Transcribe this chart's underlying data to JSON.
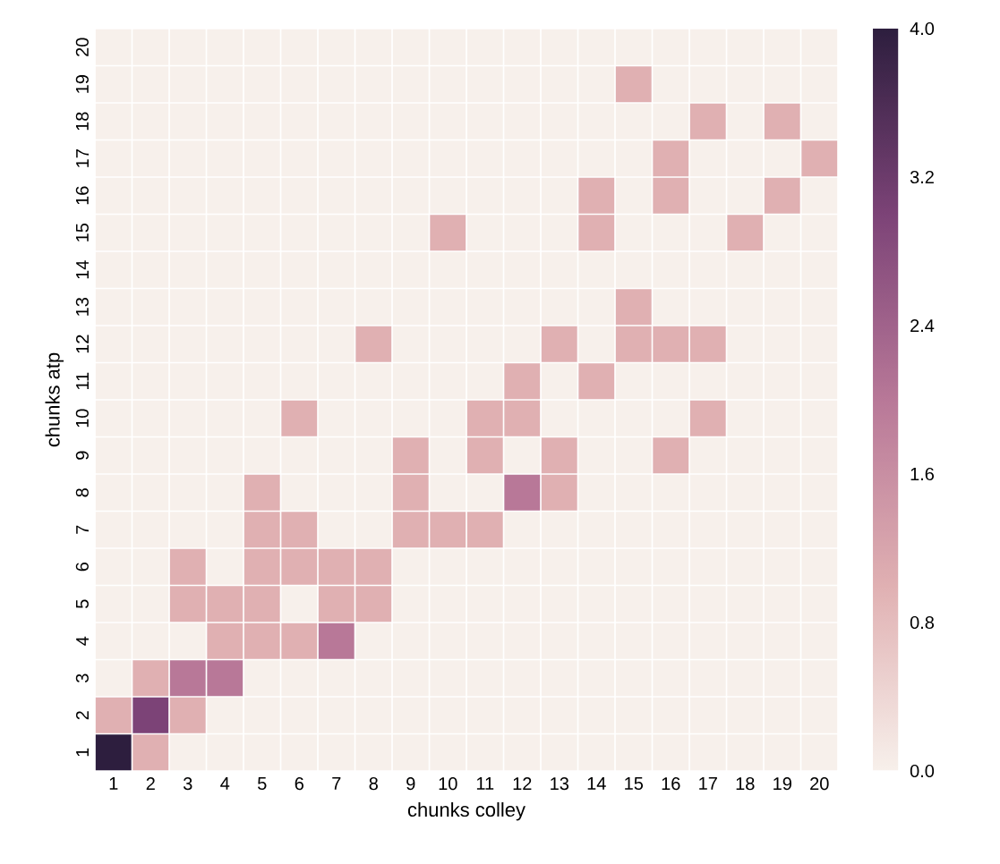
{
  "chart_data": {
    "type": "heatmap",
    "xlabel": "chunks colley",
    "ylabel": "chunks atp",
    "categories": [
      "1",
      "2",
      "3",
      "4",
      "5",
      "6",
      "7",
      "8",
      "9",
      "10",
      "11",
      "12",
      "13",
      "14",
      "15",
      "16",
      "17",
      "18",
      "19",
      "20"
    ],
    "y_categories": [
      "20",
      "19",
      "18",
      "17",
      "16",
      "15",
      "14",
      "13",
      "12",
      "11",
      "10",
      "9",
      "8",
      "7",
      "6",
      "5",
      "4",
      "3",
      "2",
      "1"
    ],
    "cells": [
      [
        0,
        0,
        0,
        0,
        0,
        0,
        0,
        0,
        0,
        0,
        0,
        0,
        0,
        0,
        0,
        0,
        0,
        0,
        0,
        0
      ],
      [
        0,
        0,
        0,
        0,
        0,
        0,
        0,
        0,
        0,
        0,
        0,
        0,
        0,
        0,
        1,
        0,
        0,
        0,
        0,
        0
      ],
      [
        0,
        0,
        0,
        0,
        0,
        0,
        0,
        0,
        0,
        0,
        0,
        0,
        0,
        0,
        0,
        0,
        1,
        0,
        1,
        0
      ],
      [
        0,
        0,
        0,
        0,
        0,
        0,
        0,
        0,
        0,
        0,
        0,
        0,
        0,
        0,
        0,
        1,
        0,
        0,
        0,
        1
      ],
      [
        0,
        0,
        0,
        0,
        0,
        0,
        0,
        0,
        0,
        0,
        0,
        0,
        0,
        1,
        0,
        1,
        0,
        0,
        1,
        0
      ],
      [
        0,
        0,
        0,
        0,
        0,
        0,
        0,
        0,
        0,
        1,
        0,
        0,
        0,
        1,
        0,
        0,
        0,
        1,
        0,
        0
      ],
      [
        0,
        0,
        0,
        0,
        0,
        0,
        0,
        0,
        0,
        0,
        0,
        0,
        0,
        0,
        0,
        0,
        0,
        0,
        0,
        0
      ],
      [
        0,
        0,
        0,
        0,
        0,
        0,
        0,
        0,
        0,
        0,
        0,
        0,
        0,
        0,
        1,
        0,
        0,
        0,
        0,
        0
      ],
      [
        0,
        0,
        0,
        0,
        0,
        0,
        0,
        1,
        0,
        0,
        0,
        0,
        1,
        0,
        1,
        1,
        1,
        0,
        0,
        0
      ],
      [
        0,
        0,
        0,
        0,
        0,
        0,
        0,
        0,
        0,
        0,
        0,
        1,
        0,
        1,
        0,
        0,
        0,
        0,
        0,
        0
      ],
      [
        0,
        0,
        0,
        0,
        0,
        1,
        0,
        0,
        0,
        0,
        1,
        1,
        0,
        0,
        0,
        0,
        1,
        0,
        0,
        0
      ],
      [
        0,
        0,
        0,
        0,
        0,
        0,
        0,
        0,
        1,
        0,
        1,
        0,
        1,
        0,
        0,
        1,
        0,
        0,
        0,
        0
      ],
      [
        0,
        0,
        0,
        0,
        1,
        0,
        0,
        0,
        1,
        0,
        0,
        2,
        1,
        0,
        0,
        0,
        0,
        0,
        0,
        0
      ],
      [
        0,
        0,
        0,
        0,
        1,
        1,
        0,
        0,
        1,
        1,
        1,
        0,
        0,
        0,
        0,
        0,
        0,
        0,
        0,
        0
      ],
      [
        0,
        0,
        1,
        0,
        1,
        1,
        1,
        1,
        0,
        0,
        0,
        0,
        0,
        0,
        0,
        0,
        0,
        0,
        0,
        0
      ],
      [
        0,
        0,
        1,
        1,
        1,
        0,
        1,
        1,
        0,
        0,
        0,
        0,
        0,
        0,
        0,
        0,
        0,
        0,
        0,
        0
      ],
      [
        0,
        0,
        0,
        1,
        1,
        1,
        2,
        0,
        0,
        0,
        0,
        0,
        0,
        0,
        0,
        0,
        0,
        0,
        0,
        0
      ],
      [
        0,
        1,
        2,
        2,
        0,
        0,
        0,
        0,
        0,
        0,
        0,
        0,
        0,
        0,
        0,
        0,
        0,
        0,
        0,
        0
      ],
      [
        1,
        3,
        1,
        0,
        0,
        0,
        0,
        0,
        0,
        0,
        0,
        0,
        0,
        0,
        0,
        0,
        0,
        0,
        0,
        0
      ],
      [
        4,
        1,
        0,
        0,
        0,
        0,
        0,
        0,
        0,
        0,
        0,
        0,
        0,
        0,
        0,
        0,
        0,
        0,
        0,
        0
      ]
    ],
    "clim": [
      0,
      4
    ],
    "cticks": [
      {
        "value": 0,
        "label": "0.0"
      },
      {
        "value": 0.8,
        "label": "0.8"
      },
      {
        "value": 1.6,
        "label": "1.6"
      },
      {
        "value": 2.4,
        "label": "2.4"
      },
      {
        "value": 3.2,
        "label": "3.2"
      },
      {
        "value": 4,
        "label": "4.0"
      }
    ]
  }
}
